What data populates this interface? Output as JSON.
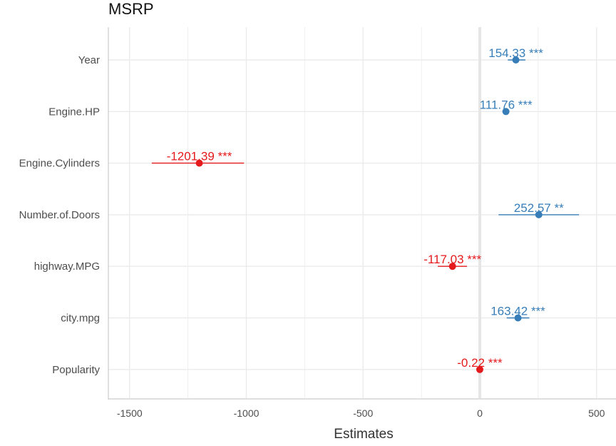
{
  "chart_data": {
    "type": "forest",
    "title": "MSRP",
    "xlabel": "Estimates",
    "ylabel": "",
    "xlim": [
      -1600,
      590
    ],
    "x_ticks": [
      -1500,
      -1000,
      -500,
      0,
      500
    ],
    "grid": true,
    "colors": {
      "positive": "#377eb8",
      "negative": "#e41a1c",
      "zero_line": "#e6e6e6",
      "grid": "#ebebeb"
    },
    "terms": [
      {
        "term": "Year",
        "estimate": 154.33,
        "ci": [
          120,
          195
        ],
        "label": "154.33 ***",
        "sign": "positive"
      },
      {
        "term": "Engine.HP",
        "estimate": 111.76,
        "ci": [
          100,
          125
        ],
        "label": "111.76 ***",
        "sign": "positive"
      },
      {
        "term": "Engine.Cylinders",
        "estimate": -1201.39,
        "ci": [
          -1405,
          -1010
        ],
        "label": "-1201.39 ***",
        "sign": "negative"
      },
      {
        "term": "Number.of.Doors",
        "estimate": 252.57,
        "ci": [
          80,
          425
        ],
        "label": "252.57 **",
        "sign": "positive"
      },
      {
        "term": "highway.MPG",
        "estimate": -117.03,
        "ci": [
          -180,
          -55
        ],
        "label": "-117.03 ***",
        "sign": "negative"
      },
      {
        "term": "city.mpg",
        "estimate": 163.42,
        "ci": [
          115,
          212
        ],
        "label": "163.42 ***",
        "sign": "positive"
      },
      {
        "term": "Popularity",
        "estimate": -0.22,
        "ci": [
          -4,
          4
        ],
        "label": "-0.22 ***",
        "sign": "negative"
      }
    ]
  }
}
